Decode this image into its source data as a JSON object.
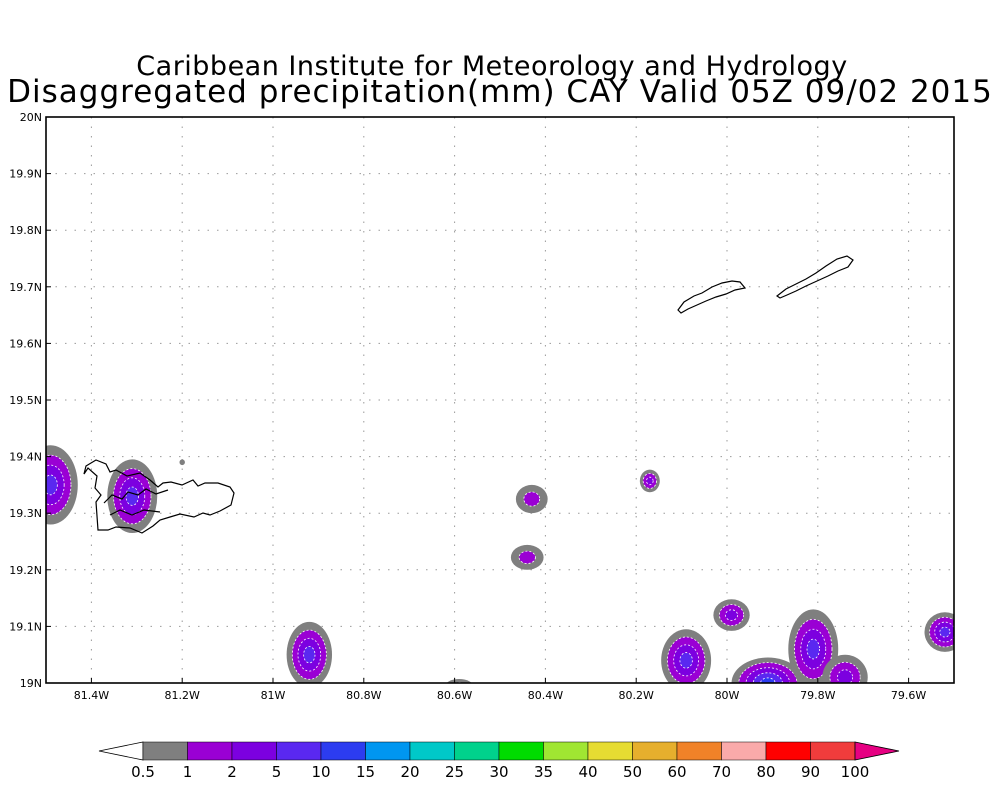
{
  "title": {
    "line1": "Caribbean Institute for Meteorology and Hydrology",
    "line2": "Disaggregated precipitation(mm) CAY Valid 05Z 09/02 2015"
  },
  "axes": {
    "lon_range": [
      -81.5,
      -79.5
    ],
    "lat_range": [
      19.0,
      20.0
    ],
    "x_ticks": [
      {
        "value": -81.4,
        "label": "81.4W"
      },
      {
        "value": -81.2,
        "label": "81.2W"
      },
      {
        "value": -81.0,
        "label": "81W"
      },
      {
        "value": -80.8,
        "label": "80.8W"
      },
      {
        "value": -80.6,
        "label": "80.6W"
      },
      {
        "value": -80.4,
        "label": "80.4W"
      },
      {
        "value": -80.2,
        "label": "80.2W"
      },
      {
        "value": -80.0,
        "label": "80W"
      },
      {
        "value": -79.8,
        "label": "79.8W"
      },
      {
        "value": -79.6,
        "label": "79.6W"
      }
    ],
    "y_ticks": [
      {
        "value": 19.0,
        "label": "19N"
      },
      {
        "value": 19.1,
        "label": "19.1N"
      },
      {
        "value": 19.2,
        "label": "19.2N"
      },
      {
        "value": 19.3,
        "label": "19.3N"
      },
      {
        "value": 19.4,
        "label": "19.4N"
      },
      {
        "value": 19.5,
        "label": "19.5N"
      },
      {
        "value": 19.6,
        "label": "19.6N"
      },
      {
        "value": 19.7,
        "label": "19.7N"
      },
      {
        "value": 19.8,
        "label": "19.8N"
      },
      {
        "value": 19.9,
        "label": "19.9N"
      },
      {
        "value": 20.0,
        "label": "20N"
      }
    ],
    "grid": true
  },
  "colorbar": {
    "bins": [
      {
        "color": "#7f7f7f"
      },
      {
        "color": "#9a00d4"
      },
      {
        "color": "#7c00e0"
      },
      {
        "color": "#5a28f0"
      },
      {
        "color": "#2c3cf0"
      },
      {
        "color": "#0096f0"
      },
      {
        "color": "#00c8c8"
      },
      {
        "color": "#00d28c"
      },
      {
        "color": "#00dc00"
      },
      {
        "color": "#a0e632"
      },
      {
        "color": "#e6dc32"
      },
      {
        "color": "#e6af2d"
      },
      {
        "color": "#f08228"
      },
      {
        "color": "#faaaaa"
      },
      {
        "color": "#ff0000"
      },
      {
        "color": "#f03c3c"
      }
    ],
    "low_color": "#ffffff",
    "high_color": "#e60082",
    "labels": [
      "0.5",
      "1",
      "2",
      "5",
      "10",
      "15",
      "20",
      "25",
      "30",
      "35",
      "40",
      "50",
      "60",
      "70",
      "80",
      "90",
      "100"
    ]
  },
  "precip_cells": [
    {
      "lon": -81.49,
      "lat": 19.35,
      "rx": 0.06,
      "ry": 0.07,
      "max_level": 3
    },
    {
      "lon": -81.31,
      "lat": 19.33,
      "rx": 0.055,
      "ry": 0.065,
      "max_level": 3
    },
    {
      "lon": -81.2,
      "lat": 19.39,
      "rx": 0.006,
      "ry": 0.005,
      "max_level": 0
    },
    {
      "lon": -80.43,
      "lat": 19.325,
      "rx": 0.035,
      "ry": 0.025,
      "max_level": 1
    },
    {
      "lon": -80.44,
      "lat": 19.222,
      "rx": 0.036,
      "ry": 0.022,
      "max_level": 1
    },
    {
      "lon": -80.17,
      "lat": 19.357,
      "rx": 0.022,
      "ry": 0.02,
      "max_level": 2
    },
    {
      "lon": -80.92,
      "lat": 19.05,
      "rx": 0.05,
      "ry": 0.058,
      "max_level": 3
    },
    {
      "lon": -80.59,
      "lat": 18.995,
      "rx": 0.03,
      "ry": 0.012,
      "max_level": 1
    },
    {
      "lon": -80.09,
      "lat": 19.04,
      "rx": 0.055,
      "ry": 0.055,
      "max_level": 3
    },
    {
      "lon": -79.99,
      "lat": 19.12,
      "rx": 0.04,
      "ry": 0.028,
      "max_level": 2
    },
    {
      "lon": -79.91,
      "lat": 19.0,
      "rx": 0.08,
      "ry": 0.045,
      "max_level": 4
    },
    {
      "lon": -79.81,
      "lat": 19.06,
      "rx": 0.055,
      "ry": 0.07,
      "max_level": 3
    },
    {
      "lon": -79.74,
      "lat": 19.01,
      "rx": 0.05,
      "ry": 0.04,
      "max_level": 2
    },
    {
      "lon": -79.52,
      "lat": 19.09,
      "rx": 0.045,
      "ry": 0.035,
      "max_level": 3
    }
  ]
}
